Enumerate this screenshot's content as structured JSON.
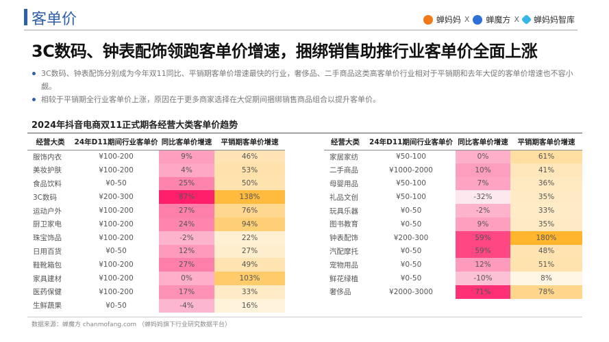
{
  "header": {
    "section": "客单价",
    "brands": [
      "蝉妈妈",
      "蝉魔方",
      "蝉妈妈智库"
    ],
    "separator": "X"
  },
  "headline": "3C数码、钟表配饰领跑客单价增速，捆绑销售助推行业客单价全面上涨",
  "bullets": [
    "3C数码、钟表配饰分别成为今年双11同比、平销期客单价增速最快的行业，奢侈品、二手商品这类高客单价行业相对于平销期和去年大促的客单价增速也不容小觑。",
    "相较于平销期全行业客单价上涨，原因在于更多商家选择在大促期间捆绑销售商品组合以提升客单价。"
  ],
  "table_title": "2024年抖音电商双11正式期各经营大类客单价趋势",
  "columns": [
    "经营大类",
    "24年D11期间行业客单价",
    "同比客单价增速",
    "平销期客单价增速"
  ],
  "colors": {
    "accent": "#2f5fa8",
    "pink_high": "#ff1f6a",
    "orange_high": "#ffb52e"
  },
  "left_rows": [
    [
      "服饰内衣",
      "¥100-200",
      "9%",
      "46%"
    ],
    [
      "美妆护肤",
      "¥100-200",
      "4%",
      "53%"
    ],
    [
      "食品饮料",
      "¥0-50",
      "25%",
      "50%"
    ],
    [
      "3C数码",
      "¥200-300",
      "87%",
      "138%"
    ],
    [
      "运动户外",
      "¥100-200",
      "27%",
      "76%"
    ],
    [
      "厨卫家电",
      "¥100-200",
      "24%",
      "94%"
    ],
    [
      "珠宝饰品",
      "¥100-200",
      "-2%",
      "22%"
    ],
    [
      "日用百货",
      "¥0-50",
      "12%",
      "27%"
    ],
    [
      "鞋靴箱包",
      "¥100-200",
      "27%",
      "49%"
    ],
    [
      "家具建材",
      "¥100-200",
      "0%",
      "103%"
    ],
    [
      "医药保健",
      "¥100-200",
      "17%",
      "33%"
    ],
    [
      "生鲜蔬果",
      "¥0-50",
      "-4%",
      "16%"
    ]
  ],
  "right_rows": [
    [
      "家居家纺",
      "¥50-100",
      "0%",
      "61%"
    ],
    [
      "二手商品",
      "¥1000-2000",
      "10%",
      "41%"
    ],
    [
      "母婴用品",
      "¥50-100",
      "7%",
      "36%"
    ],
    [
      "礼品文创",
      "¥50-100",
      "-32%",
      "35%"
    ],
    [
      "玩具乐器",
      "¥0-50",
      "-2%",
      "33%"
    ],
    [
      "图书教育",
      "¥0-50",
      "9%",
      "35%"
    ],
    [
      "钟表配饰",
      "¥200-300",
      "59%",
      "180%"
    ],
    [
      "汽配摩托",
      "¥0-50",
      "59%",
      "48%"
    ],
    [
      "宠物用品",
      "¥0-50",
      "12%",
      "51%"
    ],
    [
      "鲜花绿植",
      "¥0-50",
      "-10%",
      "8%"
    ],
    [
      "奢侈品",
      "¥2000-3000",
      "71%",
      "78%"
    ]
  ],
  "source": "数据来源：蝉魔方 chanmofang.com （蝉妈妈旗下行业研究数据平台）"
}
